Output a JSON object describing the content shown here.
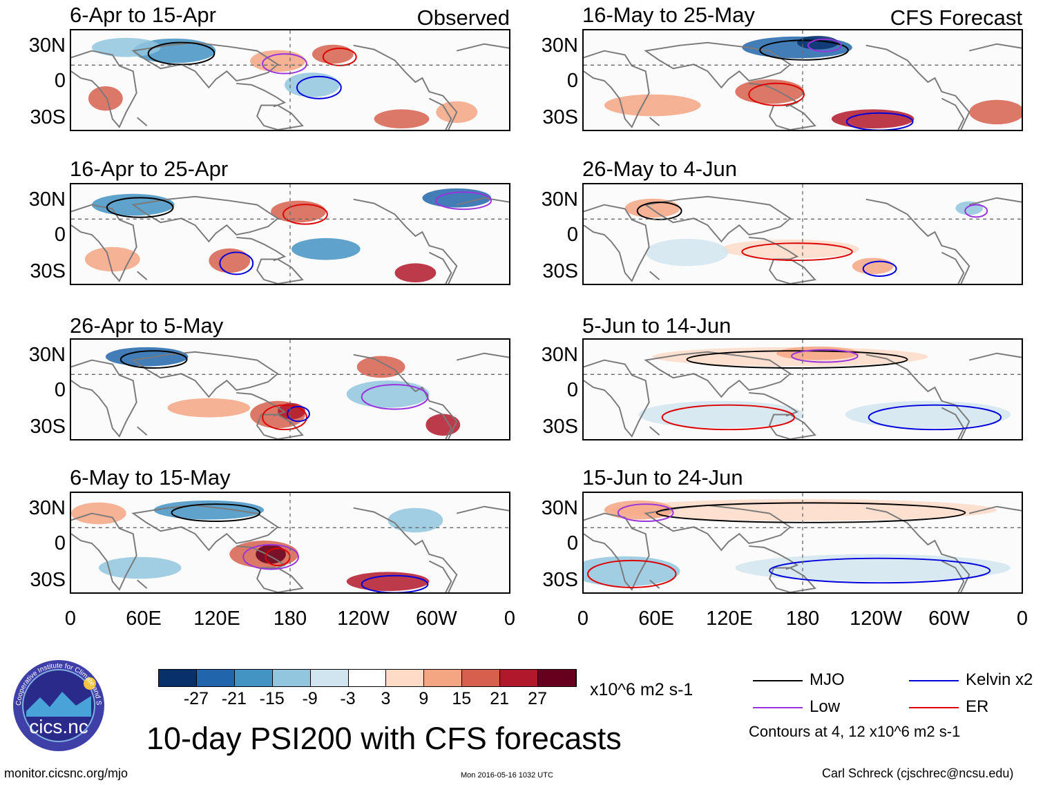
{
  "left_column": {
    "label": "Observed",
    "panels": [
      {
        "title": "6-Apr to 15-Apr"
      },
      {
        "title": "16-Apr to 25-Apr"
      },
      {
        "title": "26-Apr to 5-May"
      },
      {
        "title": "6-May to 15-May"
      }
    ]
  },
  "right_column": {
    "label": "CFS Forecast",
    "panels": [
      {
        "title": "16-May to 25-May"
      },
      {
        "title": "26-May to 4-Jun"
      },
      {
        "title": "5-Jun to 14-Jun"
      },
      {
        "title": "15-Jun to 24-Jun"
      }
    ]
  },
  "axes": {
    "lat_labels": [
      "30N",
      "0",
      "30S"
    ],
    "lon_labels": [
      "0",
      "60E",
      "120E",
      "180",
      "120W",
      "60W",
      "0"
    ]
  },
  "colorbar": {
    "colors": [
      "#08306b",
      "#2166ac",
      "#4393c3",
      "#92c5de",
      "#d1e5f0",
      "#ffffff",
      "#fddbc7",
      "#f4a582",
      "#d6604d",
      "#b2182b",
      "#67001f"
    ],
    "ticks": [
      "-27",
      "-21",
      "-15",
      "-9",
      "-3",
      "3",
      "9",
      "15",
      "21",
      "27"
    ],
    "units": "x10^6 m2 s-1"
  },
  "legend": {
    "items": [
      {
        "label": "MJO",
        "color": "#000000"
      },
      {
        "label": "Kelvin x2",
        "color": "#0000dd"
      },
      {
        "label": "Low",
        "color": "#9933dd"
      },
      {
        "label": "ER",
        "color": "#dd0000"
      }
    ],
    "note": "Contours at 4, 12 x10^6 m2 s-1"
  },
  "main_title": "10-day PSI200 with CFS forecasts",
  "logo": {
    "text": "cics.nc",
    "ring_text": "Cooperative Institute for Climate and Satellites"
  },
  "footer": {
    "website": "monitor.cicsnc.org/mjo",
    "timestamp": "Mon 2016-05-16 1032 UTC",
    "credit": "Carl Schreck (cjschrec@ncsu.edu)"
  }
}
